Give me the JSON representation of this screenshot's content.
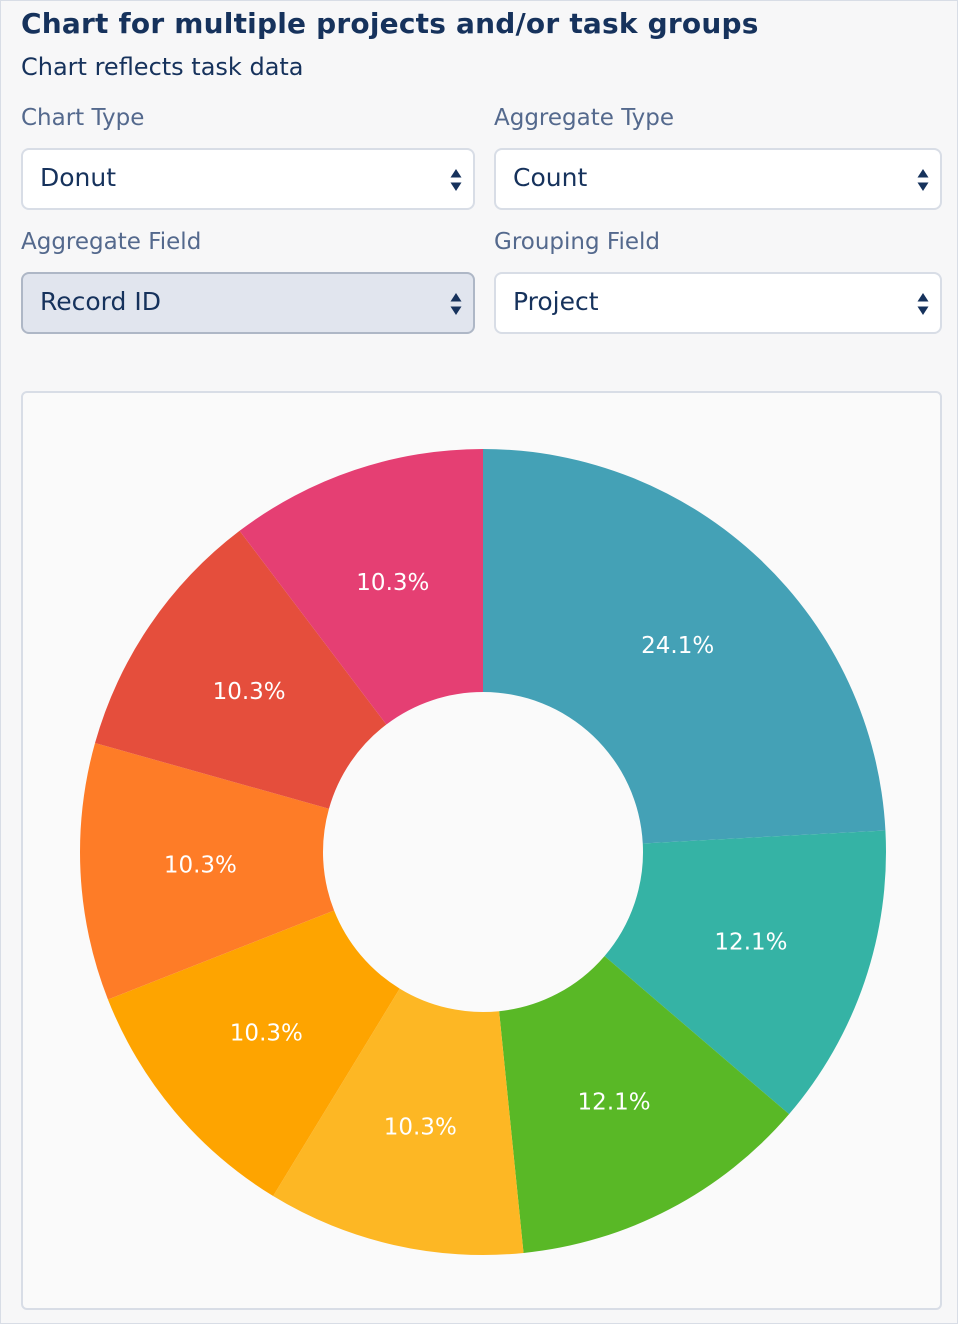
{
  "header": {
    "title": "Chart for multiple projects and/or task groups",
    "subtitle": "Chart reflects task data"
  },
  "form": {
    "chart_type": {
      "label": "Chart Type",
      "value": "Donut"
    },
    "aggregate_type": {
      "label": "Aggregate Type",
      "value": "Count"
    },
    "aggregate_field": {
      "label": "Aggregate Field",
      "value": "Record ID"
    },
    "grouping_field": {
      "label": "Grouping Field",
      "value": "Project"
    }
  },
  "chart_data": {
    "type": "pie",
    "style": "donut",
    "values": [
      24.1,
      12.1,
      12.1,
      10.3,
      10.3,
      10.3,
      10.3,
      10.3
    ],
    "labels": [
      "24.1%",
      "12.1%",
      "12.1%",
      "10.3%",
      "10.3%",
      "10.3%",
      "10.3%",
      "10.3%"
    ],
    "colors": [
      "#44a1b6",
      "#35b3a5",
      "#59b826",
      "#fdb724",
      "#fea400",
      "#fe7c27",
      "#e54e3c",
      "#e53f73"
    ],
    "legend": "none"
  },
  "icons": {
    "select_arrow": "up-down-caret-icon"
  }
}
